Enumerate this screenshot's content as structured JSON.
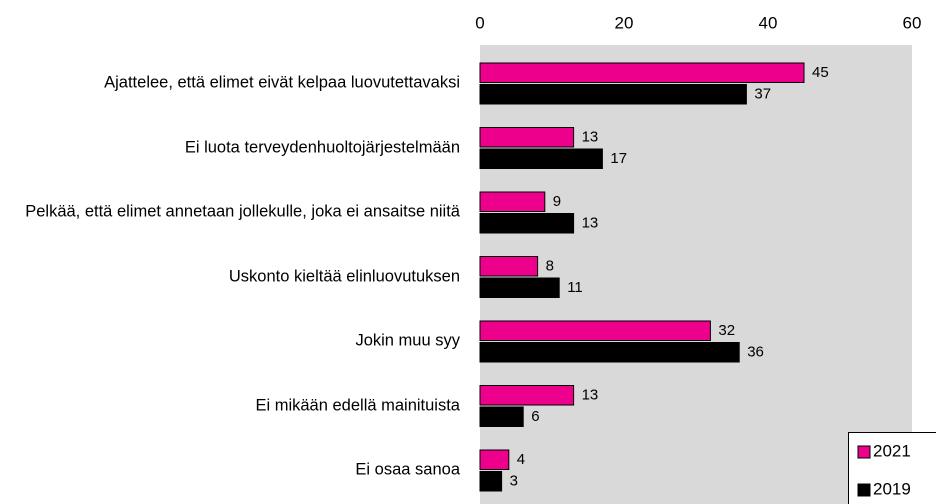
{
  "chart_data": {
    "type": "bar",
    "orientation": "horizontal",
    "categories": [
      "Ajattelee, että elimet eivät kelpaa luovutettavaksi",
      "Ei luota terveydenhuoltojärjestelmään",
      "Pelkää, että elimet annetaan jollekulle, joka ei ansaitse niitä",
      "Uskonto kieltää elinluovutuksen",
      "Jokin muu syy",
      "Ei mikään edellä mainituista",
      "Ei osaa sanoa"
    ],
    "series": [
      {
        "name": "2021",
        "color": "#ec008c",
        "values": [
          45,
          13,
          9,
          8,
          32,
          13,
          4
        ]
      },
      {
        "name": "2019",
        "color": "#000000",
        "values": [
          37,
          17,
          13,
          11,
          36,
          6,
          3
        ]
      }
    ],
    "xlim": [
      0,
      60
    ],
    "xticks": [
      0,
      20,
      40,
      60
    ],
    "legend": "lower right"
  }
}
